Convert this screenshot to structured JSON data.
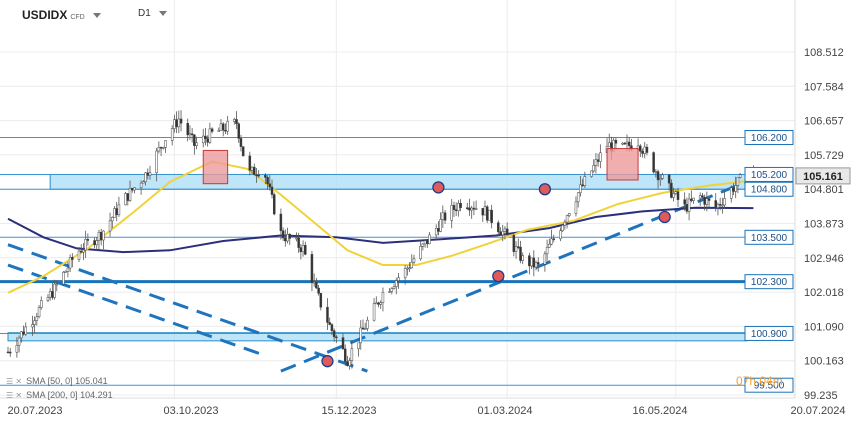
{
  "header": {
    "symbol": "USDIDX",
    "symbol_type": "CFD",
    "timeframe": "D1"
  },
  "timer": "07h 04m",
  "legend": [
    {
      "label": "SMA [50, 0] 105.041",
      "color": "#f2d23a"
    },
    {
      "label": "SMA [200, 0] 104.291",
      "color": "#2c2f7a"
    }
  ],
  "chart_data": {
    "type": "candlestick",
    "x_ticks": [
      "20.07.2023",
      "03.10.2023",
      "15.12.2023",
      "01.03.2024",
      "16.05.2024",
      "20.07.2024"
    ],
    "y_ticks": [
      "108.512",
      "107.584",
      "106.657",
      "105.729",
      "104.801",
      "103.873",
      "102.946",
      "102.018",
      "101.090",
      "100.163",
      "99.235"
    ],
    "current_price": "105.161",
    "levels": [
      {
        "label": "106.200",
        "value": 106.2,
        "weight": "thin"
      },
      {
        "label": "105.200",
        "value": 105.2,
        "weight": "thin"
      },
      {
        "label": "104.800",
        "value": 104.8,
        "weight": "thin"
      },
      {
        "label": "103.500",
        "value": 103.5,
        "weight": "thin"
      },
      {
        "label": "102.300",
        "value": 102.3,
        "weight": "thick"
      },
      {
        "label": "100.900",
        "value": 100.9,
        "weight": "thin"
      },
      {
        "label": "99.500",
        "value": 99.5,
        "weight": "thin"
      }
    ],
    "zones": [
      {
        "from": 104.8,
        "to": 105.2,
        "start": "2023-08-08",
        "end": "2024-06-17"
      },
      {
        "from": 100.7,
        "to": 100.92,
        "start": "2023-07-20",
        "end": "2024-06-17"
      }
    ],
    "supply_boxes": [
      {
        "from": 104.95,
        "to": 105.85,
        "start": "2023-10-16",
        "end": "2023-10-27"
      },
      {
        "from": 105.05,
        "to": 105.9,
        "start": "2024-04-15",
        "end": "2024-04-29"
      }
    ],
    "trendlines": [
      {
        "start": "2023-07-20",
        "start_value": 103.3,
        "end": "2023-12-29",
        "end_value": 99.88
      },
      {
        "start": "2023-11-20",
        "start_value": 99.88,
        "end": "2024-06-21",
        "end_value": 105.1
      },
      {
        "start": "2023-07-20",
        "start_value": 102.75,
        "end": "2023-11-13",
        "end_value": 100.3
      }
    ],
    "markers": [
      {
        "date": "2023-12-11",
        "value": 100.15
      },
      {
        "date": "2024-01-30",
        "value": 104.85
      },
      {
        "date": "2024-02-26",
        "value": 102.45
      },
      {
        "date": "2024-03-18",
        "value": 104.8
      },
      {
        "date": "2024-05-11",
        "value": 104.05
      }
    ],
    "sma50": [
      [
        "2023-07-20",
        102.0
      ],
      [
        "2023-08-05",
        102.45
      ],
      [
        "2023-08-25",
        103.2
      ],
      [
        "2023-09-15",
        104.2
      ],
      [
        "2023-10-01",
        105.0
      ],
      [
        "2023-10-20",
        105.55
      ],
      [
        "2023-11-05",
        105.35
      ],
      [
        "2023-11-20",
        104.65
      ],
      [
        "2023-12-05",
        103.9
      ],
      [
        "2023-12-20",
        103.15
      ],
      [
        "2024-01-05",
        102.75
      ],
      [
        "2024-01-20",
        102.75
      ],
      [
        "2024-02-05",
        103.0
      ],
      [
        "2024-02-20",
        103.3
      ],
      [
        "2024-03-10",
        103.7
      ],
      [
        "2024-03-31",
        103.95
      ],
      [
        "2024-04-20",
        104.4
      ],
      [
        "2024-05-10",
        104.7
      ],
      [
        "2024-05-31",
        104.9
      ],
      [
        "2024-06-20",
        105.04
      ]
    ],
    "sma200": [
      [
        "2023-07-20",
        104.0
      ],
      [
        "2023-08-05",
        103.5
      ],
      [
        "2023-08-20",
        103.2
      ],
      [
        "2023-09-10",
        103.1
      ],
      [
        "2023-10-01",
        103.15
      ],
      [
        "2023-10-25",
        103.4
      ],
      [
        "2023-11-20",
        103.55
      ],
      [
        "2023-12-15",
        103.5
      ],
      [
        "2024-01-05",
        103.35
      ],
      [
        "2024-01-31",
        103.45
      ],
      [
        "2024-02-25",
        103.55
      ],
      [
        "2024-03-20",
        103.75
      ],
      [
        "2024-04-10",
        104.05
      ],
      [
        "2024-05-01",
        104.2
      ],
      [
        "2024-05-25",
        104.3
      ],
      [
        "2024-06-20",
        104.29
      ]
    ],
    "price_path": [
      [
        "2023-07-20",
        100.4
      ],
      [
        "2023-07-31",
        101.3
      ],
      [
        "2023-08-10",
        102.1
      ],
      [
        "2023-08-20",
        103.1
      ],
      [
        "2023-08-31",
        103.6
      ],
      [
        "2023-09-10",
        104.5
      ],
      [
        "2023-09-20",
        105.2
      ],
      [
        "2023-09-30",
        106.3
      ],
      [
        "2023-10-05",
        106.7
      ],
      [
        "2023-10-12",
        106.0
      ],
      [
        "2023-10-20",
        106.3
      ],
      [
        "2023-10-31",
        106.6
      ],
      [
        "2023-11-05",
        105.2
      ],
      [
        "2023-11-12",
        105.4
      ],
      [
        "2023-11-20",
        103.6
      ],
      [
        "2023-11-30",
        103.2
      ],
      [
        "2023-12-06",
        102.0
      ],
      [
        "2023-12-12",
        101.1
      ],
      [
        "2023-12-20",
        100.2
      ],
      [
        "2023-12-28",
        101.1
      ],
      [
        "2024-01-05",
        102.0
      ],
      [
        "2024-01-15",
        102.6
      ],
      [
        "2024-01-25",
        103.4
      ],
      [
        "2024-02-01",
        104.0
      ],
      [
        "2024-02-10",
        104.5
      ],
      [
        "2024-02-20",
        104.2
      ],
      [
        "2024-03-01",
        103.5
      ],
      [
        "2024-03-08",
        102.9
      ],
      [
        "2024-03-15",
        102.7
      ],
      [
        "2024-03-25",
        103.8
      ],
      [
        "2024-04-01",
        104.6
      ],
      [
        "2024-04-08",
        105.3
      ],
      [
        "2024-04-15",
        106.0
      ],
      [
        "2024-04-22",
        105.9
      ],
      [
        "2024-04-29",
        106.1
      ],
      [
        "2024-05-06",
        105.4
      ],
      [
        "2024-05-13",
        104.8
      ],
      [
        "2024-05-20",
        104.3
      ],
      [
        "2024-05-27",
        104.6
      ],
      [
        "2024-06-03",
        104.3
      ],
      [
        "2024-06-10",
        104.8
      ],
      [
        "2024-06-17",
        105.2
      ],
      [
        "2024-06-21",
        105.2
      ]
    ]
  }
}
